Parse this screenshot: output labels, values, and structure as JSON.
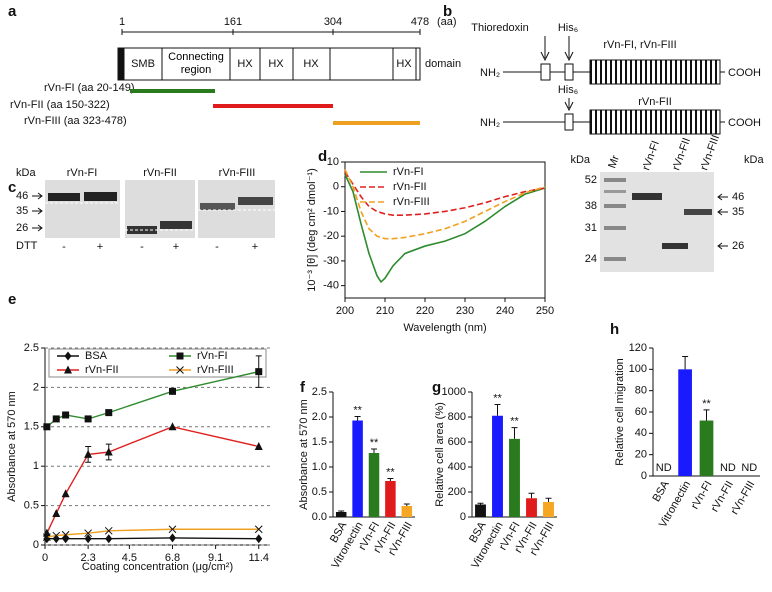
{
  "panel_a": {
    "label": "a",
    "scale_ticks": [
      1,
      161,
      304,
      478
    ],
    "scale_unit": "(aa)",
    "domains": [
      "SMB",
      "Connecting region",
      "HX",
      "HX",
      "HX",
      "HX"
    ],
    "domain_label": "domain",
    "fragments": [
      "rVn-FI (aa 20-149)",
      "rVn-FII (aa 150-322)",
      "rVn-FIII (aa 323-478)"
    ]
  },
  "panel_b": {
    "label": "b",
    "tag1": "Thioredoxin",
    "tag2": "His₆",
    "n_term": "NH₂",
    "c_term": "COOH",
    "construct1": "rVn-FI, rVn-FIII",
    "construct2": "rVn-FII"
  },
  "panel_c": {
    "label": "c",
    "unit": "kDa",
    "markers": [
      46,
      35,
      26
    ],
    "lanes": [
      "rVn-FI",
      "rVn-FII",
      "rVn-FIII"
    ],
    "treatment": "DTT",
    "signs": [
      "-",
      "+"
    ]
  },
  "panel_d_gel": {
    "lanes": [
      "Mr",
      "rVn-FI",
      "rVn-FII",
      "rVn-FIII"
    ],
    "unit": "kDa",
    "markers_left": [
      52,
      38,
      31,
      24
    ],
    "bands_right": [
      46,
      35,
      26
    ]
  },
  "chart_data": [
    {
      "type": "line",
      "label": "d",
      "x_label": "Wavelength (nm)",
      "y_label": "10⁻³ [θ] (deg cm² dmol⁻¹)",
      "x": [
        200,
        202,
        204,
        206,
        208,
        209,
        210,
        212,
        215,
        220,
        225,
        230,
        235,
        240,
        245,
        250
      ],
      "series": [
        {
          "name": "rVn-FI",
          "color": "#2e8b2e",
          "line_style": "solid",
          "values": [
            5,
            -2,
            -15,
            -27,
            -36,
            -38.5,
            -37,
            -32,
            -27,
            -24,
            -22,
            -19,
            -14,
            -8,
            -3,
            -0.5
          ]
        },
        {
          "name": "rVn-FII",
          "color": "#e02020",
          "line_style": "dashed",
          "values": [
            6,
            1,
            -4,
            -8,
            -10,
            -10.5,
            -11,
            -11.5,
            -11.5,
            -11,
            -10,
            -8.5,
            -6.5,
            -4,
            -2,
            -0.5
          ]
        },
        {
          "name": "rVn-FIII",
          "color": "#f0a020",
          "line_style": "dashed",
          "values": [
            7,
            0,
            -10,
            -17,
            -20,
            -20.5,
            -21,
            -21,
            -20.5,
            -19,
            -17,
            -14,
            -10,
            -6,
            -2.5,
            0
          ]
        }
      ],
      "xlim": [
        200,
        250
      ],
      "xticks": [
        200,
        210,
        220,
        230,
        240,
        250
      ],
      "ylim": [
        -45,
        10
      ],
      "yticks": [
        10,
        0,
        -10,
        -20,
        -30,
        -40
      ]
    },
    {
      "type": "scatter",
      "label": "e",
      "x_label": "Coating concentration (μg/cm²)",
      "y_label": "Absorbance at 570 nm",
      "x": [
        0.1,
        0.6,
        1.1,
        2.3,
        3.4,
        6.8,
        11.4
      ],
      "series": [
        {
          "name": "BSA",
          "color": "#111111",
          "marker": "diamond",
          "values": [
            0.08,
            0.08,
            0.08,
            0.08,
            0.08,
            0.09,
            0.08
          ]
        },
        {
          "name": "rVn-FI",
          "color": "#2e8b2e",
          "marker": "square",
          "values": [
            1.5,
            1.6,
            1.65,
            1.6,
            1.68,
            1.95,
            2.2
          ],
          "errors": [
            null,
            null,
            null,
            null,
            null,
            null,
            0.2
          ]
        },
        {
          "name": "rVn-FII",
          "color": "#e02020",
          "marker": "triangle",
          "values": [
            0.15,
            0.4,
            0.65,
            1.15,
            1.18,
            1.5,
            1.25
          ],
          "errors": [
            null,
            null,
            null,
            0.1,
            0.1,
            null,
            null
          ]
        },
        {
          "name": "rVn-FIII",
          "color": "#f0a020",
          "marker": "x",
          "values": [
            0.1,
            0.12,
            0.13,
            0.15,
            0.18,
            0.2,
            0.2
          ]
        }
      ],
      "xlim": [
        0,
        12
      ],
      "xticks": [
        0,
        2.3,
        4.5,
        6.8,
        9.1,
        11.4
      ],
      "ylim": [
        0,
        2.5
      ],
      "yticks": [
        0,
        0.5,
        1,
        1.5,
        2,
        2.5
      ],
      "grid": true
    },
    {
      "type": "bar",
      "label": "f",
      "y_label": "Absorbance at 570 nm",
      "categories": [
        "BSA",
        "Vitronectin",
        "rVn-FI",
        "rVn-FII",
        "rVn-FIII"
      ],
      "values": [
        0.1,
        1.93,
        1.28,
        0.72,
        0.22
      ],
      "errors": [
        0.02,
        0.08,
        0.08,
        0.05,
        0.04
      ],
      "annotations": [
        null,
        "**",
        "**",
        "**",
        null
      ],
      "colors": [
        "#111111",
        "#1a1aff",
        "#2a7a1e",
        "#e01b1b",
        "#f5a623"
      ],
      "ylim": [
        0,
        2.5
      ],
      "yticks": [
        {
          "value": 0,
          "label": "0.0"
        },
        0.5,
        {
          "value": 1,
          "label": "1.0"
        },
        1.5,
        {
          "value": 2,
          "label": "2.0"
        },
        2.5
      ]
    },
    {
      "type": "bar",
      "label": "g",
      "y_label": "Relative cell area (%)",
      "categories": [
        "BSA",
        "Vitronectin",
        "rVn-FI",
        "rVn-FII",
        "rVn-FIII"
      ],
      "values": [
        100,
        810,
        625,
        150,
        120
      ],
      "errors": [
        10,
        90,
        90,
        40,
        30
      ],
      "annotations": [
        null,
        "**",
        "**",
        null,
        null
      ],
      "colors": [
        "#111111",
        "#1a1aff",
        "#2a7a1e",
        "#e01b1b",
        "#f5a623"
      ],
      "ylim": [
        0,
        1000
      ],
      "yticks": [
        0,
        200,
        400,
        600,
        800,
        1000
      ]
    },
    {
      "type": "bar",
      "label": "h",
      "y_label": "Relative cell migration",
      "categories": [
        "BSA",
        "Vitronectin",
        "rVn-FI",
        "rVn-FII",
        "rVn-FIII"
      ],
      "values": [
        null,
        100,
        52,
        null,
        null
      ],
      "value_labels": [
        "ND",
        null,
        null,
        "ND",
        "ND"
      ],
      "errors": [
        null,
        12,
        10,
        null,
        null
      ],
      "annotations": [
        null,
        null,
        "**",
        null,
        null
      ],
      "colors": [
        "#111111",
        "#1a1aff",
        "#2a7a1e",
        "#e01b1b",
        "#f5a623"
      ],
      "ylim": [
        0,
        120
      ],
      "yticks": [
        0,
        20,
        40,
        60,
        80,
        100,
        120
      ]
    }
  ]
}
